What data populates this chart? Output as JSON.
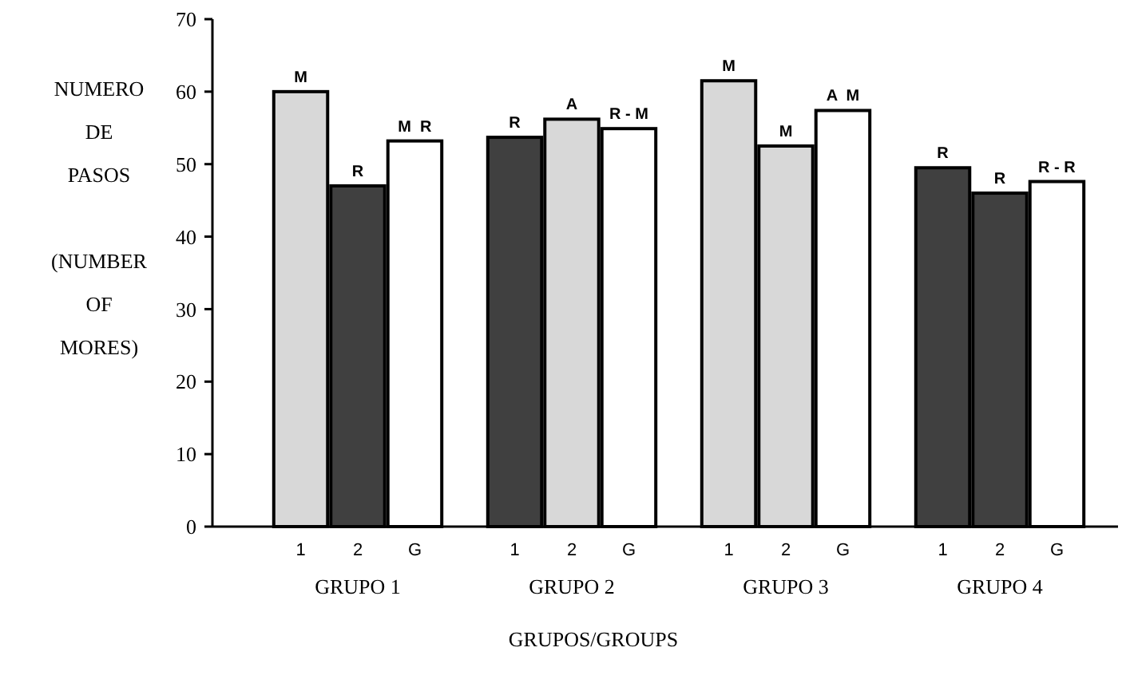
{
  "chart_data": {
    "type": "bar",
    "xlabel": "GRUPOS/GROUPS",
    "ylabel": "NUMERO\nDE\nPASOS\n\n(NUMBER\nOF\nMORES)",
    "categories": [
      "GRUPO 1",
      "GRUPO 2",
      "GRUPO 3",
      "GRUPO 4"
    ],
    "series": [
      {
        "name": "1",
        "values": [
          60.0,
          53.7,
          61.5,
          49.5
        ],
        "colors": [
          "#d8d8d8",
          "#404040",
          "#d8d8d8",
          "#404040"
        ],
        "value_labels": [
          "M",
          "R",
          "M",
          "R"
        ]
      },
      {
        "name": "2",
        "values": [
          47.0,
          56.2,
          52.5,
          46.0
        ],
        "colors": [
          "#404040",
          "#d8d8d8",
          "#d8d8d8",
          "#404040"
        ],
        "value_labels": [
          "R",
          "A",
          "M",
          "R"
        ]
      },
      {
        "name": "G",
        "values": [
          53.2,
          54.9,
          57.4,
          47.6
        ],
        "color": "#ffffff",
        "value_labels": [
          "M  R",
          "R - M",
          "A  M",
          "R - R"
        ]
      }
    ],
    "ylim": [
      0,
      70
    ],
    "yticks": [
      0,
      10,
      20,
      30,
      40,
      50,
      60,
      70
    ],
    "grid": false
  }
}
